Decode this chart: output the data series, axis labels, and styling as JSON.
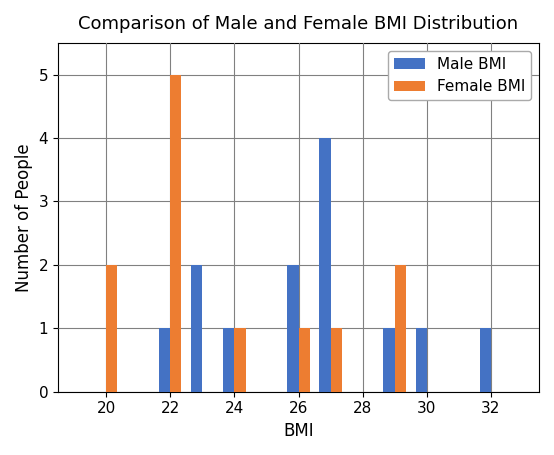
{
  "title": "Comparison of Male and Female BMI Distribution",
  "xlabel": "BMI",
  "ylabel": "Number of People",
  "male_bmi": [
    22,
    23,
    24,
    26,
    27,
    29,
    30,
    32
  ],
  "male_count": [
    1,
    2,
    1,
    2,
    4,
    1,
    1,
    1
  ],
  "female_bmi": [
    20,
    22,
    24,
    26,
    27,
    29
  ],
  "female_count": [
    2,
    5,
    1,
    1,
    1,
    2
  ],
  "male_color": "#4472c4",
  "female_color": "#ed7d31",
  "ylim": [
    0,
    5.5
  ],
  "yticks": [
    0,
    1,
    2,
    3,
    4,
    5
  ],
  "xlim": [
    18.5,
    33.5
  ],
  "xticks": [
    20,
    22,
    24,
    26,
    28,
    30,
    32
  ],
  "bar_width": 0.35,
  "legend_labels": [
    "Male BMI",
    "Female BMI"
  ],
  "grid": true,
  "figsize": [
    5.54,
    4.55
  ],
  "dpi": 100
}
